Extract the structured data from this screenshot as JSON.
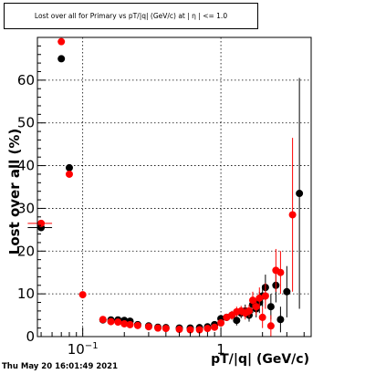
{
  "title": "Lost over all for Primary vs pT/|q| (GeV/c) at | η | <= 1.0",
  "timestamp": "Thu May 20 16:01:49 2021",
  "colors": {
    "series_black": "#000000",
    "series_red": "#ff0000",
    "grid": "#000000",
    "frame": "#000000"
  },
  "chart_data": {
    "type": "scatter",
    "title": "Lost over all for Primary vs pT/|q| (GeV/c) at | η | <= 1.0",
    "xlabel": "pT/|q| (GeV/c)",
    "ylabel": "Lost over all (%)",
    "xscale": "log",
    "xlim": [
      0.047,
      4.5
    ],
    "ylim": [
      0,
      70
    ],
    "grid": true,
    "legend": "none",
    "x_ticks": [
      {
        "value": 0.1,
        "base": "10",
        "exp": "−1"
      },
      {
        "value": 1,
        "label": "1"
      }
    ],
    "y_ticks": [
      0,
      10,
      20,
      30,
      40,
      50,
      60
    ],
    "series": [
      {
        "color": "black",
        "points": [
          {
            "x": 0.05,
            "y": 25.5,
            "xerr": 0.01
          },
          {
            "x": 0.07,
            "y": 65.0
          },
          {
            "x": 0.08,
            "y": 39.5
          },
          {
            "x": 0.14,
            "y": 3.9
          },
          {
            "x": 0.16,
            "y": 3.9
          },
          {
            "x": 0.18,
            "y": 3.9
          },
          {
            "x": 0.2,
            "y": 3.8
          },
          {
            "x": 0.22,
            "y": 3.6
          },
          {
            "x": 0.25,
            "y": 2.8
          },
          {
            "x": 0.3,
            "y": 2.5
          },
          {
            "x": 0.35,
            "y": 2.2
          },
          {
            "x": 0.4,
            "y": 2.1
          },
          {
            "x": 0.5,
            "y": 2.0
          },
          {
            "x": 0.6,
            "y": 2.0
          },
          {
            "x": 0.7,
            "y": 2.1
          },
          {
            "x": 0.8,
            "y": 2.3
          },
          {
            "x": 0.9,
            "y": 2.8
          },
          {
            "x": 1.0,
            "y": 4.2
          },
          {
            "x": 1.1,
            "y": 4.5,
            "yerr": 0.8
          },
          {
            "x": 1.2,
            "y": 5.0,
            "yerr": 1.0
          },
          {
            "x": 1.3,
            "y": 3.8,
            "yerr": 1.2
          },
          {
            "x": 1.4,
            "y": 5.5,
            "yerr": 1.2
          },
          {
            "x": 1.5,
            "y": 6.0,
            "yerr": 1.5
          },
          {
            "x": 1.6,
            "y": 5.0,
            "yerr": 1.5
          },
          {
            "x": 1.7,
            "y": 7.5,
            "yerr": 2.0
          },
          {
            "x": 1.8,
            "y": 6.5,
            "yerr": 2.0
          },
          {
            "x": 1.9,
            "y": 8.0,
            "yerr": 2.5
          },
          {
            "x": 2.0,
            "y": 9.5,
            "yerr": 2.5
          },
          {
            "x": 2.1,
            "y": 11.5,
            "yerr": 3.0
          },
          {
            "x": 2.3,
            "y": 7.0,
            "yerr": 3.0
          },
          {
            "x": 2.5,
            "y": 12.0,
            "yerr": 4.0
          },
          {
            "x": 2.7,
            "y": 4.0,
            "yerr": 3.0
          },
          {
            "x": 3.0,
            "y": 10.5,
            "yerr": 6.0
          },
          {
            "x": 3.7,
            "y": 33.5,
            "yerr": 27.0
          }
        ]
      },
      {
        "color": "red",
        "points": [
          {
            "x": 0.05,
            "y": 26.5,
            "xerr": 0.01
          },
          {
            "x": 0.07,
            "y": 69.0
          },
          {
            "x": 0.08,
            "y": 38.0
          },
          {
            "x": 0.1,
            "y": 9.8
          },
          {
            "x": 0.14,
            "y": 4.0
          },
          {
            "x": 0.16,
            "y": 3.5
          },
          {
            "x": 0.18,
            "y": 3.4
          },
          {
            "x": 0.2,
            "y": 3.0
          },
          {
            "x": 0.22,
            "y": 2.8
          },
          {
            "x": 0.25,
            "y": 2.6
          },
          {
            "x": 0.3,
            "y": 2.3
          },
          {
            "x": 0.35,
            "y": 2.0
          },
          {
            "x": 0.4,
            "y": 1.9
          },
          {
            "x": 0.5,
            "y": 1.7
          },
          {
            "x": 0.6,
            "y": 1.6
          },
          {
            "x": 0.7,
            "y": 1.6
          },
          {
            "x": 0.8,
            "y": 1.9
          },
          {
            "x": 0.9,
            "y": 2.2
          },
          {
            "x": 1.0,
            "y": 3.2
          },
          {
            "x": 1.1,
            "y": 4.5,
            "yerr": 0.8
          },
          {
            "x": 1.2,
            "y": 5.0,
            "yerr": 1.0
          },
          {
            "x": 1.3,
            "y": 5.8,
            "yerr": 1.2
          },
          {
            "x": 1.4,
            "y": 6.0,
            "yerr": 1.2
          },
          {
            "x": 1.5,
            "y": 5.5,
            "yerr": 1.5
          },
          {
            "x": 1.6,
            "y": 6.0,
            "yerr": 1.5
          },
          {
            "x": 1.7,
            "y": 8.5,
            "yerr": 2.0
          },
          {
            "x": 1.8,
            "y": 7.0,
            "yerr": 2.0
          },
          {
            "x": 1.9,
            "y": 9.0,
            "yerr": 2.5
          },
          {
            "x": 2.0,
            "y": 4.5,
            "yerr": 2.5
          },
          {
            "x": 2.1,
            "y": 9.5,
            "yerr": 3.0
          },
          {
            "x": 2.3,
            "y": 2.5,
            "yerr": 2.5
          },
          {
            "x": 2.5,
            "y": 15.5,
            "yerr": 5.0
          },
          {
            "x": 2.7,
            "y": 15.0,
            "yerr": 5.0
          },
          {
            "x": 3.3,
            "y": 28.5,
            "yerr": 18.0
          }
        ]
      }
    ]
  }
}
